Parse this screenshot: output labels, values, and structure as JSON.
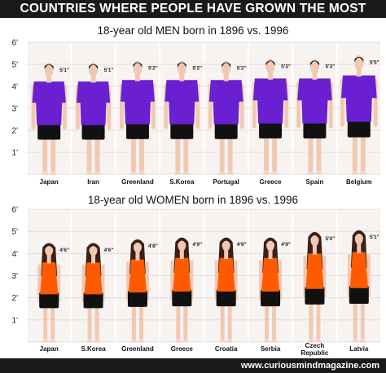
{
  "header": {
    "title": "COUNTRIES WHERE PEOPLE HAVE GROWN THE MOST"
  },
  "footer": {
    "website": "www.curiousmindmagazine.com"
  },
  "colors": {
    "header_bg": "#1a1a1a",
    "men_shirt": "#6a1fd1",
    "women_top": "#ff5a00",
    "shorts": "#111111",
    "skin": "#f1c9b3",
    "hair_women": "#3b1f17",
    "hair_men": "#1a1a1a",
    "column_bg": "#f7f3f1",
    "grid": "#d9d9d9"
  },
  "chart_data": [
    {
      "type": "bar",
      "title": "18-year old MEN born in 1896 vs. 1996",
      "y_unit": "feet",
      "ylim": [
        0,
        6
      ],
      "yticks": [
        "1'",
        "2'",
        "3'",
        "4'",
        "5'",
        "6'"
      ],
      "grid": true,
      "categories": [
        "Japan",
        "Iran",
        "Greenland",
        "S.Korea",
        "Portugal",
        "Greece",
        "Spain",
        "Belgium"
      ],
      "labels": [
        "5'1\"",
        "5'1\"",
        "5'2\"",
        "5'2\"",
        "5'2\"",
        "5'3\"",
        "5'3\"",
        "5'5\""
      ],
      "values": [
        5.083,
        5.083,
        5.167,
        5.167,
        5.167,
        5.25,
        5.25,
        5.417
      ]
    },
    {
      "type": "bar",
      "title": "18-year old WOMEN born in 1896 vs. 1996",
      "y_unit": "feet",
      "ylim": [
        0,
        6
      ],
      "yticks": [
        "1'",
        "2'",
        "3'",
        "4'",
        "5'",
        "6'"
      ],
      "grid": true,
      "categories": [
        "Japan",
        "S.Korea",
        "Greenland",
        "Greece",
        "Croatia",
        "Serbia",
        "Czech Republic",
        "Latvia"
      ],
      "labels": [
        "4'6\"",
        "4'6\"",
        "4'8\"",
        "4'9\"",
        "4'9\"",
        "4'9\"",
        "5'0\"",
        "5'1\""
      ],
      "values": [
        4.5,
        4.5,
        4.667,
        4.75,
        4.75,
        4.75,
        5.0,
        5.083
      ]
    }
  ]
}
